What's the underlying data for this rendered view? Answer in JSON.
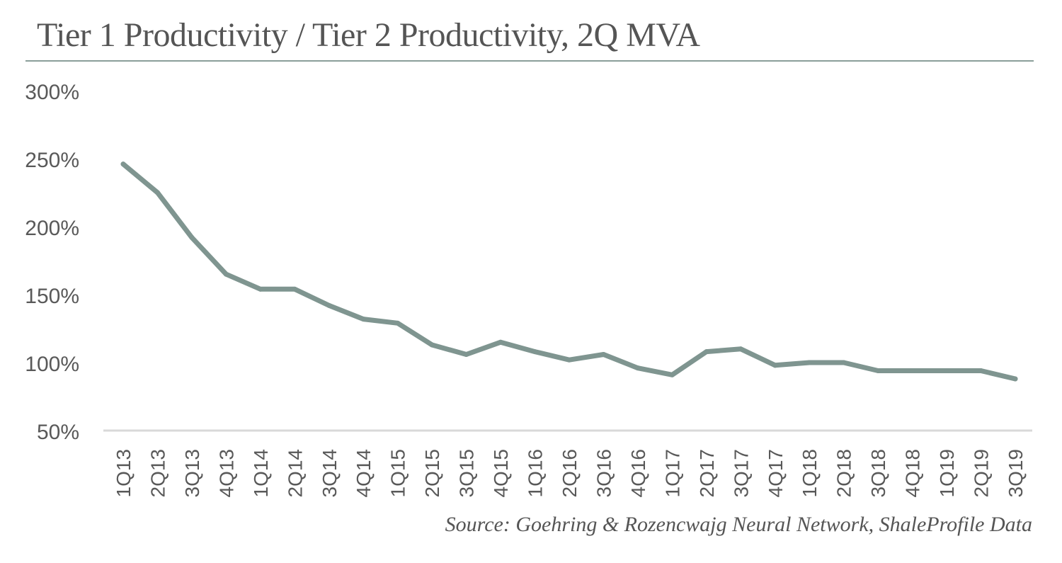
{
  "title": "Tier 1 Productivity / Tier 2 Productivity, 2Q MVA",
  "source": "Source: Goehring & Rozencwajg Neural Network, ShaleProfile Data",
  "colors": {
    "line": "#7f9590",
    "axis": "#d9d9d9",
    "text": "#595959",
    "title_rule": "#8a9e99"
  },
  "chart_data": {
    "type": "line",
    "title": "Tier 1 Productivity / Tier 2 Productivity, 2Q MVA",
    "xlabel": "",
    "ylabel": "",
    "ylim": [
      50,
      300
    ],
    "yticks": [
      50,
      100,
      150,
      200,
      250,
      300
    ],
    "ytick_labels": [
      "50%",
      "100%",
      "150%",
      "200%",
      "250%",
      "300%"
    ],
    "grid": false,
    "legend": "none",
    "categories": [
      "1Q13",
      "2Q13",
      "3Q13",
      "4Q13",
      "1Q14",
      "2Q14",
      "3Q14",
      "4Q14",
      "1Q15",
      "2Q15",
      "3Q15",
      "4Q15",
      "1Q16",
      "2Q16",
      "3Q16",
      "4Q16",
      "1Q17",
      "2Q17",
      "3Q17",
      "4Q17",
      "1Q18",
      "2Q18",
      "3Q18",
      "4Q18",
      "1Q19",
      "2Q19",
      "3Q19"
    ],
    "series": [
      {
        "values": [
          246,
          225,
          192,
          165,
          154,
          154,
          142,
          132,
          129,
          113,
          106,
          115,
          108,
          102,
          106,
          96,
          91,
          108,
          110,
          98,
          100,
          100,
          94,
          94,
          94,
          94,
          88
        ]
      }
    ]
  }
}
